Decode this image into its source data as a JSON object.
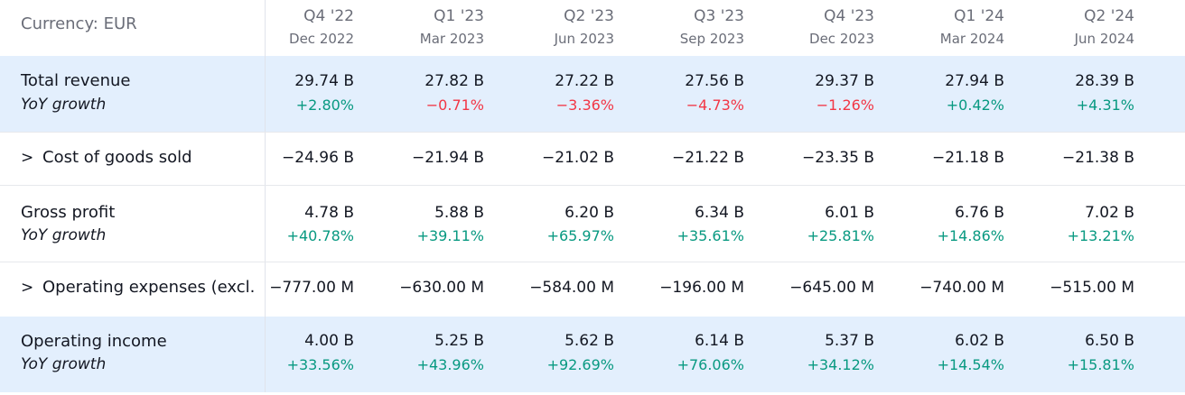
{
  "currency_label": "Currency: EUR",
  "columns": [
    {
      "quarter": "Q4 '22",
      "date": "Dec 2022"
    },
    {
      "quarter": "Q1 '23",
      "date": "Mar 2023"
    },
    {
      "quarter": "Q2 '23",
      "date": "Jun 2023"
    },
    {
      "quarter": "Q3 '23",
      "date": "Sep 2023"
    },
    {
      "quarter": "Q4 '23",
      "date": "Dec 2023"
    },
    {
      "quarter": "Q1 '24",
      "date": "Mar 2024"
    },
    {
      "quarter": "Q2 '24",
      "date": "Jun 2024"
    }
  ],
  "rows": {
    "total_revenue": {
      "label": "Total revenue",
      "sub_label": "YoY growth",
      "values": [
        "29.74 B",
        "27.82 B",
        "27.22 B",
        "27.56 B",
        "29.37 B",
        "27.94 B",
        "28.39 B"
      ],
      "growth": [
        "+2.80%",
        "−0.71%",
        "−3.36%",
        "−4.73%",
        "−1.26%",
        "+0.42%",
        "+4.31%"
      ]
    },
    "cogs": {
      "chevron": ">",
      "label": "Cost of goods sold",
      "values": [
        "−24.96 B",
        "−21.94 B",
        "−21.02 B",
        "−21.22 B",
        "−23.35 B",
        "−21.18 B",
        "−21.38 B"
      ]
    },
    "gross_profit": {
      "label": "Gross profit",
      "sub_label": "YoY growth",
      "values": [
        "4.78 B",
        "5.88 B",
        "6.20 B",
        "6.34 B",
        "6.01 B",
        "6.76 B",
        "7.02 B"
      ],
      "growth": [
        "+40.78%",
        "+39.11%",
        "+65.97%",
        "+35.61%",
        "+25.81%",
        "+14.86%",
        "+13.21%"
      ]
    },
    "opex": {
      "chevron": ">",
      "label": "Operating expenses (excl.",
      "values": [
        "−777.00 M",
        "−630.00 M",
        "−584.00 M",
        "−196.00 M",
        "−645.00 M",
        "−740.00 M",
        "−515.00 M"
      ]
    },
    "operating_income": {
      "label": "Operating income",
      "sub_label": "YoY growth",
      "values": [
        "4.00 B",
        "5.25 B",
        "5.62 B",
        "6.14 B",
        "5.37 B",
        "6.02 B",
        "6.50 B"
      ],
      "growth": [
        "+33.56%",
        "+43.96%",
        "+92.69%",
        "+76.06%",
        "+34.12%",
        "+14.54%",
        "+15.81%"
      ]
    }
  },
  "colors": {
    "positive": "#089981",
    "negative": "#f23645",
    "highlight": "#e3effd"
  }
}
